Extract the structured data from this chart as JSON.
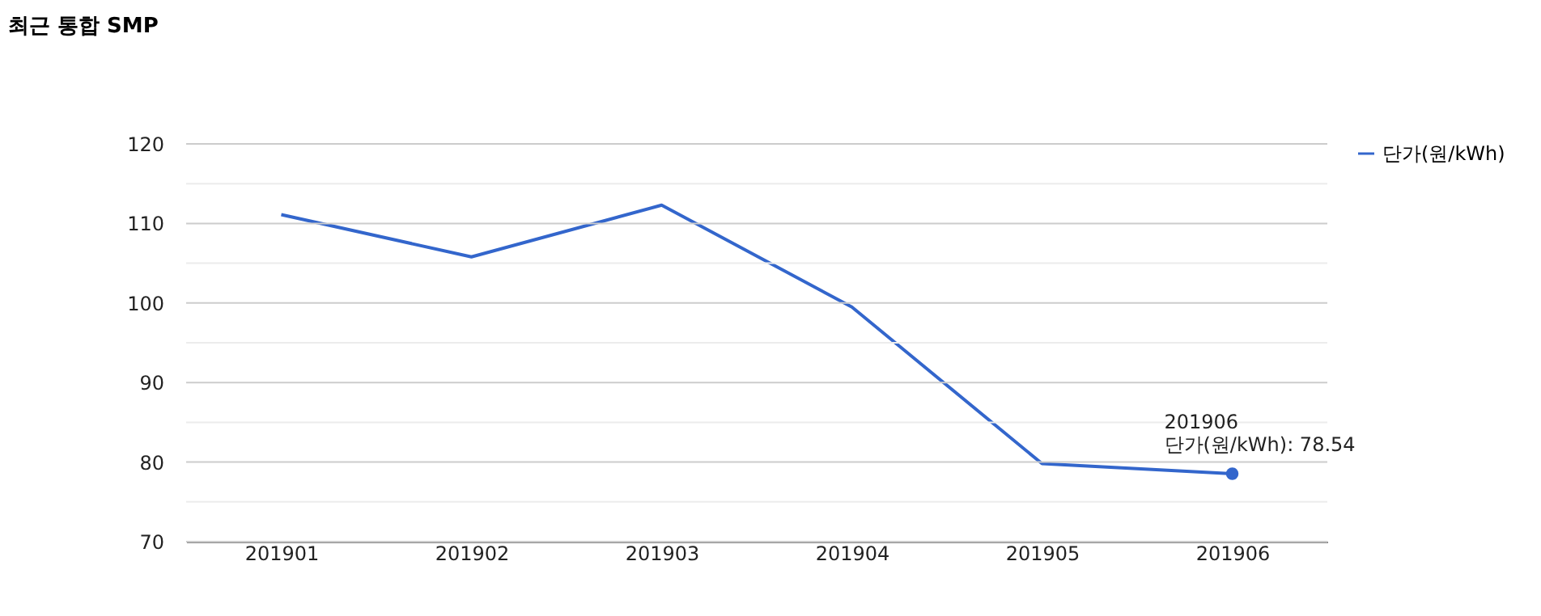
{
  "chart_data": {
    "type": "line",
    "title": "최근 통합 SMP",
    "categories": [
      "201901",
      "201902",
      "201903",
      "201904",
      "201905",
      "201906"
    ],
    "series": [
      {
        "name": "단가(원/kWh)",
        "color": "#3366cc",
        "values": [
          111.1,
          105.8,
          112.3,
          99.5,
          79.8,
          78.54
        ]
      }
    ],
    "ylim": [
      70,
      120
    ],
    "yticks": [
      70,
      {
        "value": 75,
        "label": null
      },
      80,
      {
        "value": 85,
        "label": null
      },
      90,
      {
        "value": 95,
        "label": null
      },
      100,
      {
        "value": 105,
        "label": null
      },
      110,
      {
        "value": 115,
        "label": null
      },
      120
    ],
    "grid": "y",
    "legend": "top right",
    "marker": "none",
    "line_style": "solid",
    "annotations": [
      {
        "text": "201906\n단가(원/kWh): 78.54",
        "x": "201906",
        "y": 78.54
      }
    ]
  }
}
